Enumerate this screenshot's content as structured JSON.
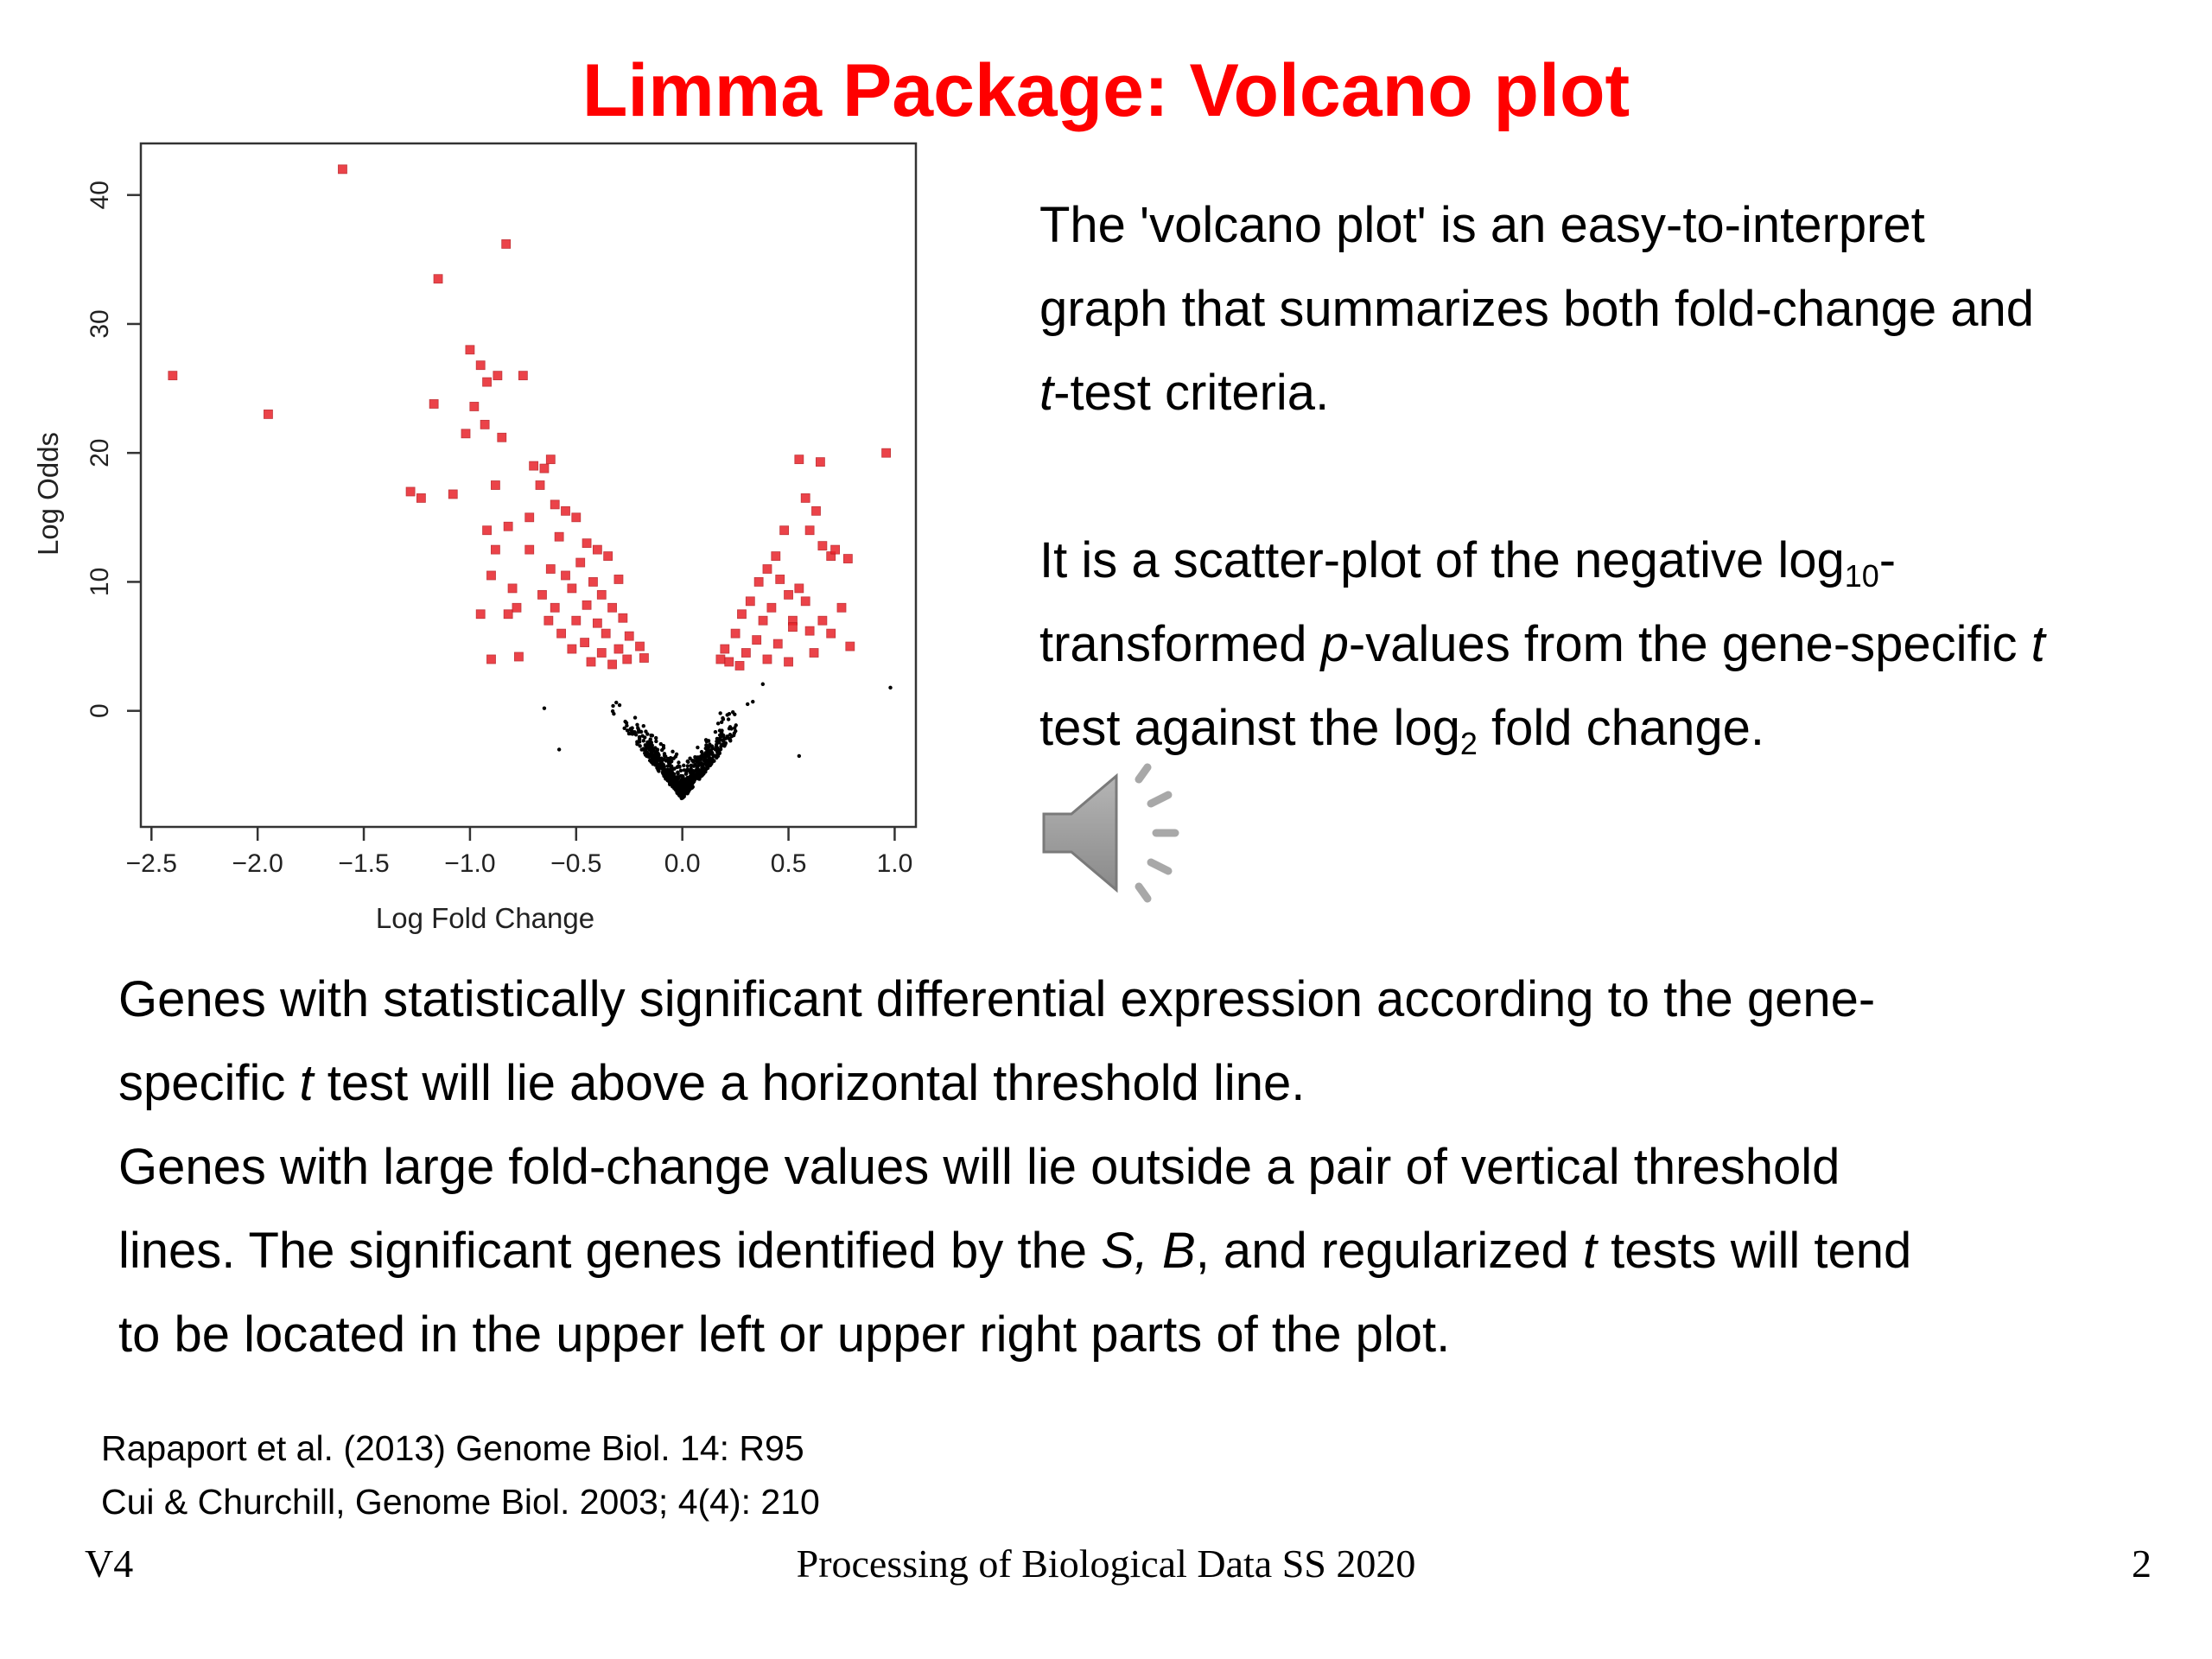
{
  "slide": {
    "title": "Limma Package: Volcano plot"
  },
  "paragraph1": {
    "line1": "The 'volcano plot' is an easy-to-interpret",
    "line2": "graph that summarizes both fold-change and",
    "line3_italic": "t",
    "line3_rest": "-test criteria."
  },
  "paragraph2": {
    "l1_a": "It is a scatter-plot of the negative log",
    "l1_sub": "10",
    "l1_b": "-",
    "l2_a": "transformed ",
    "l2_italic": "p",
    "l2_b": "-values from the gene-specific ",
    "l2_italic2": "t",
    "l3_a": "test against the log",
    "l3_sub": "2",
    "l3_b": " fold change."
  },
  "body": {
    "l1": "Genes with statistically significant differential expression according to the gene-",
    "l2_a": "specific ",
    "l2_italic": "t",
    "l2_b": " test will lie above a horizontal threshold line.",
    "l3": "Genes with large fold-change values will lie outside a pair of vertical threshold",
    "l4_a": "lines. The significant genes identified by the ",
    "l4_italic": "S, B",
    "l4_b": ", and regularized ",
    "l4_italic2": "t",
    "l4_c": " tests will tend",
    "l5": "to be located in the upper left or upper right parts of the plot."
  },
  "references": [
    "Rapaport et al. (2013) Genome Biol. 14: R95",
    "Cui & Churchill, Genome Biol. 2003; 4(4): 210"
  ],
  "footer": {
    "left": "V4",
    "center": "Processing of Biological Data SS 2020",
    "right": "2"
  },
  "icons": {
    "speaker": "speaker-icon"
  },
  "colors": {
    "title": "#ff0000",
    "significant": "#e8232a",
    "nonsignificant": "#000000"
  },
  "chart_data": {
    "type": "scatter",
    "xlabel": "Log Fold Change",
    "ylabel": "Log Odds",
    "xlim": [
      -2.55,
      1.1
    ],
    "ylim": [
      -9,
      44
    ],
    "xticks": [
      -2.5,
      -2.0,
      -1.5,
      -1.0,
      -0.5,
      0.0,
      0.5,
      1.0
    ],
    "xtick_labels": [
      "−2.5",
      "−2.0",
      "−1.5",
      "−1.0",
      "−0.5",
      "0.0",
      "0.5",
      "1.0"
    ],
    "yticks": [
      0,
      10,
      20,
      30,
      40
    ],
    "ytick_labels": [
      "0",
      "10",
      "20",
      "30",
      "40"
    ],
    "series": [
      {
        "points": [
          [
            -1.6,
            42.0
          ],
          [
            -0.83,
            36.2
          ],
          [
            -1.15,
            33.5
          ],
          [
            -2.4,
            26.0
          ],
          [
            -1.95,
            23.0
          ],
          [
            -1.0,
            28.0
          ],
          [
            -0.95,
            26.8
          ],
          [
            -0.87,
            26.0
          ],
          [
            -0.75,
            26.0
          ],
          [
            -0.92,
            25.5
          ],
          [
            -1.17,
            23.8
          ],
          [
            -0.98,
            23.6
          ],
          [
            -0.93,
            22.2
          ],
          [
            -1.02,
            21.5
          ],
          [
            -0.85,
            21.2
          ],
          [
            -1.28,
            17.0
          ],
          [
            -1.23,
            16.5
          ],
          [
            -1.08,
            16.8
          ],
          [
            -0.88,
            17.5
          ],
          [
            -0.7,
            19.0
          ],
          [
            -0.65,
            18.8
          ],
          [
            -0.62,
            19.5
          ],
          [
            -0.67,
            17.5
          ],
          [
            -0.6,
            16.0
          ],
          [
            -0.55,
            15.5
          ],
          [
            -0.5,
            15.0
          ],
          [
            -0.72,
            15.0
          ],
          [
            -0.58,
            13.5
          ],
          [
            -0.45,
            13.0
          ],
          [
            -0.4,
            12.5
          ],
          [
            -0.35,
            12.0
          ],
          [
            -0.48,
            11.5
          ],
          [
            -0.62,
            11.0
          ],
          [
            -0.55,
            10.5
          ],
          [
            -0.42,
            10.0
          ],
          [
            -0.3,
            10.2
          ],
          [
            -0.38,
            9.0
          ],
          [
            -0.52,
            9.5
          ],
          [
            -0.66,
            9.0
          ],
          [
            -0.6,
            8.0
          ],
          [
            -0.45,
            8.2
          ],
          [
            -0.33,
            8.0
          ],
          [
            -0.28,
            7.2
          ],
          [
            -0.4,
            6.8
          ],
          [
            -0.5,
            7.0
          ],
          [
            -0.63,
            7.0
          ],
          [
            -0.57,
            6.0
          ],
          [
            -0.36,
            6.0
          ],
          [
            -0.25,
            5.8
          ],
          [
            -0.46,
            5.3
          ],
          [
            -0.3,
            4.8
          ],
          [
            -0.2,
            5.0
          ],
          [
            -0.38,
            4.5
          ],
          [
            -0.52,
            4.8
          ],
          [
            -0.43,
            3.8
          ],
          [
            -0.26,
            4.0
          ],
          [
            -0.18,
            4.1
          ],
          [
            -0.33,
            3.6
          ],
          [
            -0.9,
            10.5
          ],
          [
            -0.95,
            7.5
          ],
          [
            -0.82,
            7.5
          ],
          [
            -0.78,
            8.0
          ],
          [
            -0.9,
            4.0
          ],
          [
            -0.77,
            4.2
          ],
          [
            -0.88,
            12.5
          ],
          [
            -0.92,
            14.0
          ],
          [
            -0.82,
            14.3
          ],
          [
            -0.8,
            9.5
          ],
          [
            -0.72,
            12.5
          ],
          [
            0.55,
            19.5
          ],
          [
            0.65,
            19.3
          ],
          [
            0.96,
            20.0
          ],
          [
            0.58,
            16.5
          ],
          [
            0.63,
            15.5
          ],
          [
            0.6,
            14.0
          ],
          [
            0.48,
            14.0
          ],
          [
            0.66,
            12.8
          ],
          [
            0.7,
            12.0
          ],
          [
            0.78,
            11.8
          ],
          [
            0.44,
            12.0
          ],
          [
            0.4,
            11.0
          ],
          [
            0.36,
            10.0
          ],
          [
            0.46,
            10.2
          ],
          [
            0.55,
            9.5
          ],
          [
            0.5,
            9.0
          ],
          [
            0.32,
            8.5
          ],
          [
            0.42,
            8.0
          ],
          [
            0.28,
            7.5
          ],
          [
            0.38,
            7.0
          ],
          [
            0.52,
            7.0
          ],
          [
            0.6,
            6.2
          ],
          [
            0.7,
            6.0
          ],
          [
            0.25,
            6.0
          ],
          [
            0.35,
            5.5
          ],
          [
            0.45,
            5.2
          ],
          [
            0.3,
            4.5
          ],
          [
            0.2,
            4.8
          ],
          [
            0.4,
            4.0
          ],
          [
            0.22,
            3.8
          ],
          [
            0.5,
            3.8
          ],
          [
            0.75,
            8.0
          ],
          [
            0.79,
            5.0
          ],
          [
            0.58,
            8.5
          ],
          [
            0.62,
            4.5
          ],
          [
            0.18,
            4.0
          ],
          [
            0.27,
            3.5
          ],
          [
            0.66,
            7.0
          ],
          [
            0.72,
            12.5
          ],
          [
            0.52,
            6.5
          ]
        ]
      },
      {
        "generated": "dense cluster of ~600 non-significant genes around x=0, y≈-6 to 4",
        "extra_points": [
          [
            0.98,
            1.8
          ],
          [
            0.55,
            -3.5
          ],
          [
            -0.58,
            -3.0
          ],
          [
            -0.65,
            0.2
          ]
        ]
      }
    ]
  }
}
